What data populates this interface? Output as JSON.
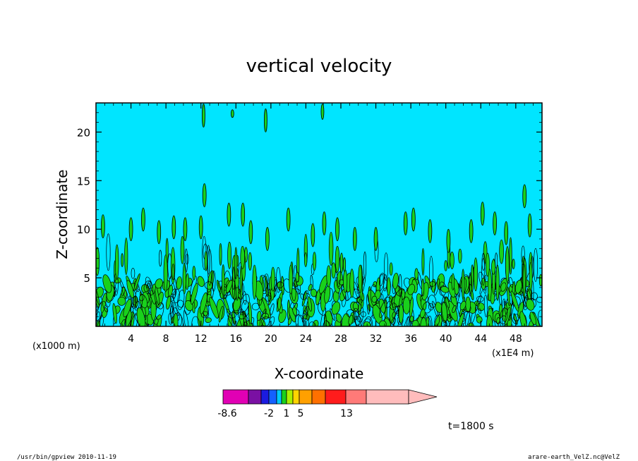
{
  "chart_data": {
    "type": "heatmap",
    "title": "vertical velocity",
    "xlabel": "X-coordinate",
    "ylabel": "Z-coordinate",
    "x_unit_left": "(x1000 m)",
    "x_unit_right": "(x1E4 m)",
    "xlim": [
      0,
      51
    ],
    "ylim": [
      0,
      23
    ],
    "x_ticks": [
      4,
      8,
      12,
      16,
      20,
      24,
      28,
      32,
      36,
      40,
      44,
      48
    ],
    "y_ticks": [
      5,
      10,
      15,
      20
    ],
    "background_color": "#00e5ff",
    "contour_fill_color": "#19d11c",
    "colorbar": {
      "colors": [
        "#e100b4",
        "#7a10a3",
        "#1b1be0",
        "#1460ff",
        "#00c8ff",
        "#19d11c",
        "#aaf000",
        "#ffd400",
        "#ffa000",
        "#ff7000",
        "#ff1c1c",
        "#ff7a78",
        "#ffbcbc"
      ],
      "labels": [
        "-8.6",
        "-2",
        "1",
        "5",
        "13"
      ]
    },
    "time_label": "t=1800 s"
  },
  "footer": {
    "left": "/usr/bin/gpview  2010-11-19",
    "right": "arare-earth_VelZ.nc@VelZ"
  }
}
